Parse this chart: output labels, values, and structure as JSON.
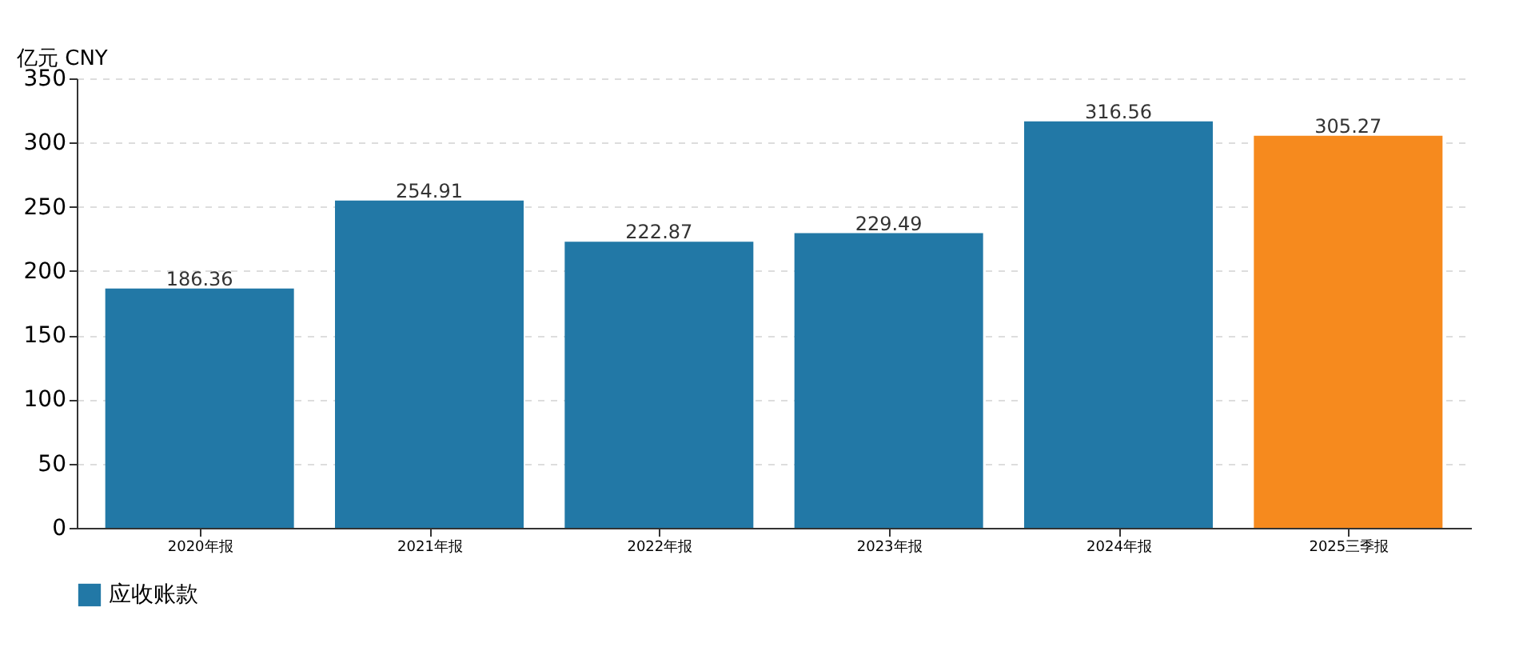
{
  "chart_data": {
    "type": "bar",
    "ylabel": "亿元  CNY",
    "categories": [
      "2020年报",
      "2021年报",
      "2022年报",
      "2023年报",
      "2024年报",
      "2025三季报"
    ],
    "series": [
      {
        "name": "应收账款",
        "color": "#2278a6",
        "colors": [
          "#2278a6",
          "#2278a6",
          "#2278a6",
          "#2278a6",
          "#2278a6",
          "#f68a1e"
        ],
        "values": [
          186.36,
          254.91,
          222.87,
          229.49,
          316.56,
          305.27
        ]
      }
    ],
    "ylim": [
      0,
      350
    ],
    "yticks": [
      0,
      50,
      100,
      150,
      200,
      250,
      300,
      350
    ],
    "grid": "y",
    "legend": "bottom",
    "data_labels": true
  }
}
